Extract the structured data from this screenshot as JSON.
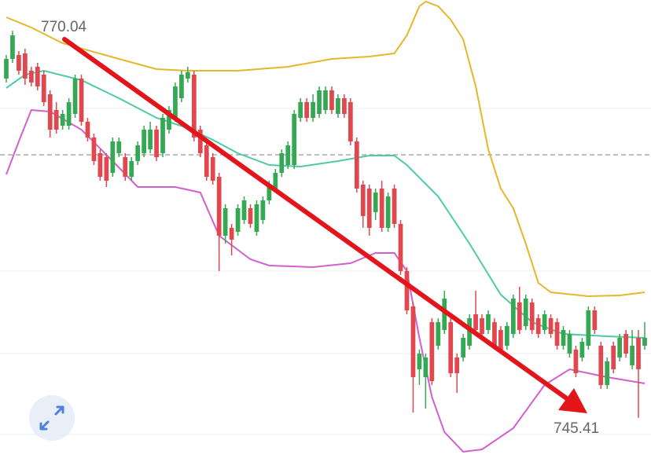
{
  "chart_data": {
    "type": "candlestick",
    "ylim": [
      742.6,
      772.0
    ],
    "up_color": "#35a853",
    "down_color": "#e0474f",
    "open": [
      767,
      768.25,
      768.5,
      768.6,
      767.5,
      767.75,
      767.25,
      766,
      765,
      764,
      764,
      764.75,
      767,
      764.25,
      763.25,
      762.25,
      762,
      761,
      762.25,
      762,
      760.75,
      761.75,
      762.25,
      762.5,
      763.75,
      762.25,
      763.75,
      764.5,
      765.75,
      767,
      767.25,
      763.75,
      762.75,
      762,
      760.75,
      757,
      757.5,
      757.25,
      758,
      758.75,
      757.25,
      758,
      759.25,
      760,
      761,
      761.5,
      761.5,
      764.5,
      765.5,
      764.5,
      764.75,
      765,
      766.25,
      764.75,
      765.75,
      765.5,
      763,
      760.25,
      760,
      758.5,
      760,
      757.5,
      760,
      757.75,
      754.75,
      752.5,
      748.5,
      748,
      751.5,
      750,
      751,
      751.5,
      749.25,
      749.25,
      750,
      752,
      751.75,
      751,
      751.5,
      751,
      750,
      750.75,
      752.75,
      751.25,
      752.75,
      751.75,
      751,
      751.75,
      751.5,
      750,
      749.5,
      749.75,
      749.25,
      750,
      752.25,
      750,
      747.5,
      750,
      749.25,
      750.75,
      748.75,
      750.5,
      750
    ],
    "high": [
      768.5,
      770.04,
      768.75,
      768.9,
      767.75,
      768,
      767.5,
      766.25,
      765.5,
      765,
      765.75,
      767.25,
      767.25,
      764.5,
      763.5,
      762.5,
      762.25,
      763.25,
      763.25,
      762.25,
      762,
      763,
      764,
      764.25,
      764,
      764.75,
      765.25,
      766.75,
      767.5,
      767.75,
      767.5,
      764,
      763,
      762.25,
      761,
      759,
      757.75,
      759,
      759.5,
      759,
      759.25,
      759.5,
      760.5,
      761.25,
      762.5,
      763,
      765,
      765.75,
      765.75,
      766,
      766.5,
      766.5,
      766.5,
      766,
      766,
      765.75,
      763.25,
      760.5,
      760.25,
      760,
      760.5,
      759.75,
      760.25,
      758,
      755,
      752.75,
      749.75,
      749.5,
      751.75,
      751.75,
      753.5,
      751.75,
      749.5,
      750.75,
      752,
      753.5,
      752,
      752.25,
      751.75,
      751.25,
      751.5,
      753.25,
      753.75,
      753.25,
      753,
      752,
      752.25,
      752,
      751.75,
      751.25,
      751,
      750,
      750.5,
      752.5,
      752.5,
      750.25,
      749.25,
      750.25,
      750.75,
      751,
      751,
      751,
      751.5
    ],
    "low": [
      766.75,
      768,
      767.25,
      766.6,
      766.5,
      766.25,
      765.25,
      763.25,
      763.5,
      763.75,
      763.75,
      764.5,
      764,
      763,
      761.5,
      760.5,
      760.1,
      760.75,
      762,
      760.5,
      760.5,
      761.5,
      762,
      762.25,
      761.75,
      762,
      763.5,
      764.25,
      765.5,
      766.75,
      763,
      762,
      760.5,
      760.25,
      754.75,
      756.5,
      755.75,
      757,
      757.75,
      757.5,
      757,
      757.75,
      759,
      759.75,
      760.75,
      761.25,
      761.25,
      764.25,
      764.25,
      764.25,
      764.5,
      764.75,
      764.75,
      764.5,
      764.5,
      762.75,
      759.75,
      757.5,
      757,
      758,
      757.25,
      757.25,
      757.5,
      754.5,
      752,
      745.75,
      747.5,
      746,
      747.5,
      749.75,
      750.75,
      748,
      747,
      749,
      749.75,
      750.75,
      750.5,
      750.75,
      749.75,
      749.5,
      749.75,
      750.5,
      750.75,
      751,
      750.75,
      750.5,
      750.75,
      750.5,
      749.75,
      749.75,
      749.25,
      748,
      749,
      749.75,
      750.75,
      747.25,
      747.25,
      748.25,
      749,
      749.25,
      748.5,
      745.41,
      749.75
    ],
    "close": [
      768.25,
      769.75,
      767.5,
      767,
      766.75,
      766.5,
      765.5,
      763.75,
      763.75,
      764.75,
      765.5,
      767,
      764.25,
      763.25,
      761.75,
      760.75,
      760.5,
      763,
      763,
      760.75,
      761.75,
      762.75,
      763.75,
      763.75,
      762,
      764.5,
      765,
      766.5,
      767.25,
      767.4,
      763.25,
      762.25,
      760.75,
      760.5,
      757,
      758.75,
      756.75,
      758.75,
      759.25,
      757.75,
      759,
      759.25,
      760.25,
      761,
      762.25,
      762.75,
      764.75,
      765.5,
      764.5,
      765.5,
      766.25,
      766.25,
      765,
      765.75,
      764.75,
      763,
      760,
      758.25,
      757.5,
      759.75,
      757.5,
      759.5,
      757.75,
      754.75,
      752.25,
      748,
      749.5,
      749.25,
      747.75,
      751.5,
      753,
      748.25,
      748.25,
      750.5,
      751.75,
      751,
      750.75,
      752,
      750,
      749.75,
      751.25,
      753,
      751,
      753,
      751,
      750.75,
      752,
      750.75,
      750,
      751,
      750.75,
      748.25,
      750.25,
      752.25,
      751,
      747.5,
      749,
      748.5,
      750.5,
      749.5,
      750,
      748.5,
      750.5
    ],
    "series": [
      {
        "color": "#e6b72a",
        "x": [
          0,
          4,
          9,
          18,
          24,
          29,
          37,
          45,
          52,
          58,
          62,
          64,
          66,
          67,
          69,
          71,
          73,
          75,
          77,
          79,
          81,
          83,
          85,
          87,
          93,
          98,
          102
        ],
        "values": [
          770.9,
          770.25,
          769.25,
          768.25,
          767.6,
          767.5,
          767.5,
          767.75,
          768.25,
          768.4,
          768.6,
          769.75,
          771.6,
          771.9,
          771.6,
          770.75,
          769.5,
          766.5,
          762.5,
          760,
          758.75,
          756.5,
          754,
          753.4,
          753.15,
          753.2,
          753.4
        ]
      },
      {
        "color": "#4ecaa6",
        "x": [
          0,
          3,
          6,
          12,
          18,
          24,
          29,
          33,
          37,
          42,
          47,
          53,
          58,
          62,
          64,
          69,
          74,
          79,
          84,
          89,
          96,
          102
        ],
        "values": [
          766.4,
          767.25,
          767.5,
          766.9,
          765.75,
          764.5,
          763.85,
          763.1,
          762.25,
          761.5,
          761.4,
          761.75,
          762.1,
          762.1,
          761.5,
          759.5,
          756.5,
          753.25,
          751.5,
          750.75,
          750.6,
          750.5
        ]
      },
      {
        "color": "#d35fcf",
        "x": [
          0,
          2,
          4,
          7,
          12,
          17,
          21,
          27,
          31,
          34,
          39,
          42,
          49,
          55,
          59,
          62,
          64,
          66,
          68,
          70,
          73,
          76,
          81,
          86,
          90,
          96,
          102
        ],
        "values": [
          760.9,
          763,
          765,
          764.9,
          763.75,
          761.75,
          760.1,
          760.1,
          759.75,
          757,
          755.5,
          755.1,
          755,
          755.25,
          755.9,
          755.9,
          754.75,
          750.5,
          746.75,
          744.5,
          743.25,
          743.4,
          744.75,
          747.5,
          748.5,
          748,
          747.6
        ]
      }
    ],
    "annotations": [
      {
        "value": 770.04,
        "label": "770.04"
      },
      {
        "value": 745.41,
        "label": "745.41"
      }
    ]
  }
}
